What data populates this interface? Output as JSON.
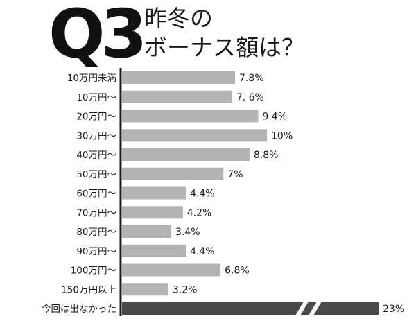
{
  "header": {
    "q_number": "Q3",
    "question_line1": "昨冬の",
    "question_line2": "ボーナス額は？"
  },
  "chart_data": {
    "type": "bar",
    "orientation": "horizontal",
    "categories": [
      "10万円未満",
      "10万円～",
      "20万円～",
      "30万円～",
      "40万円～",
      "50万円～",
      "60万円～",
      "70万円～",
      "80万円～",
      "90万円～",
      "100万円～",
      "150万円以上",
      "今回は出なかった"
    ],
    "values": [
      7.8,
      7.6,
      9.4,
      10,
      8.8,
      7,
      4.4,
      4.2,
      3.4,
      4.4,
      6.8,
      3.2,
      23
    ],
    "value_labels": [
      "7.8%",
      "7. 6%",
      "9.4%",
      "10%",
      "8.8%",
      "7%",
      "4.4%",
      "4.2%",
      "3.4%",
      "4.4%",
      "6.8%",
      "3.2%",
      "23%"
    ],
    "broken_bars": [
      12
    ],
    "title": "",
    "xlabel": "",
    "ylabel": "",
    "grid": false,
    "colors": {
      "bar": "#b3b3b5",
      "bar_highlight": "#4a4a4c",
      "axis": "#1a1a1a"
    }
  }
}
